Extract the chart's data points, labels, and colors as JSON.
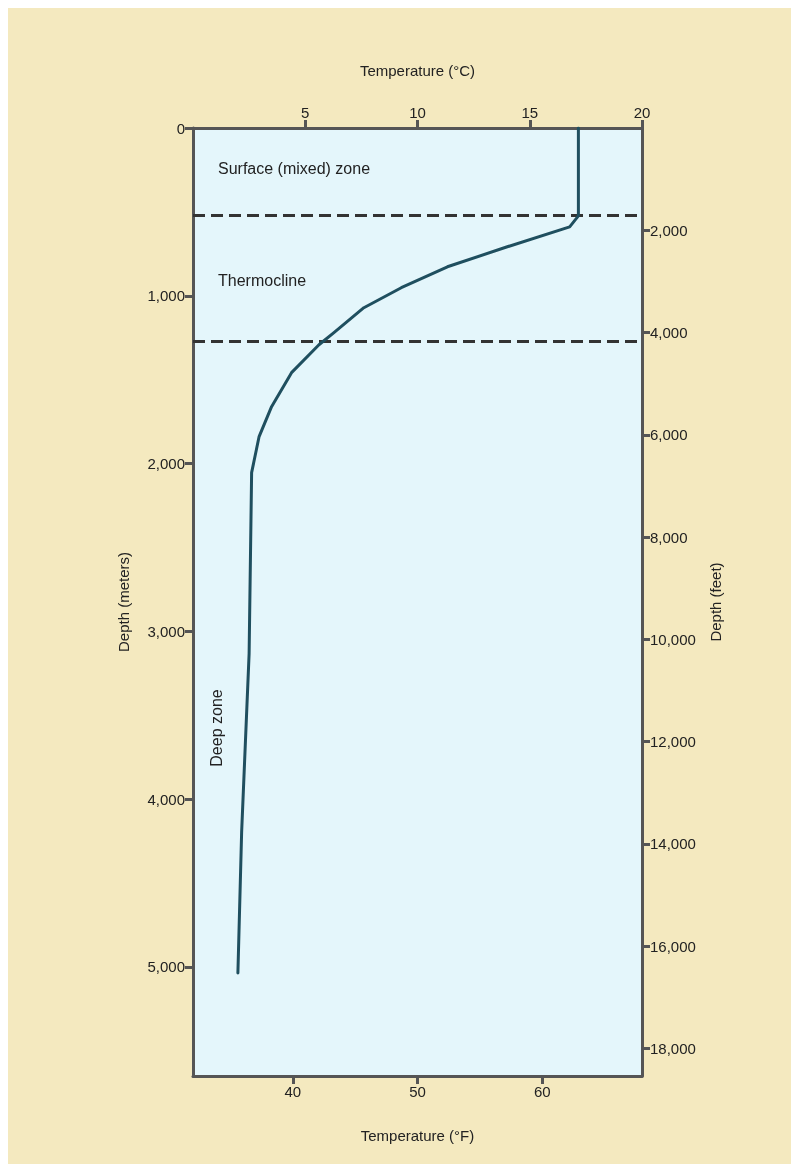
{
  "chart_data": {
    "type": "line",
    "xlabel": "Temperature (°F)",
    "x2label": "Temperature (°C)",
    "ylabel": "Depth (meters)",
    "y2label": "Depth (feet)",
    "xlim": [
      32,
      68
    ],
    "xticks": [
      40,
      50,
      60
    ],
    "x2lim": [
      0,
      20
    ],
    "x2ticks": [
      5,
      10,
      15,
      20
    ],
    "ylim": [
      5650,
      0
    ],
    "yticks": [
      0,
      {
        "value": 1000,
        "label": "1,000"
      },
      {
        "value": 2000,
        "label": "2,000"
      },
      {
        "value": 3000,
        "label": "3,000"
      },
      {
        "value": 4000,
        "label": "4,000"
      },
      {
        "value": 5000,
        "label": "5,000"
      }
    ],
    "y2lim": [
      18540,
      0
    ],
    "y2ticks": [
      {
        "value": 2000,
        "label": "2,000"
      },
      {
        "value": 4000,
        "label": "4,000"
      },
      {
        "value": 6000,
        "label": "6,000"
      },
      {
        "value": 8000,
        "label": "8,000"
      },
      {
        "value": 10000,
        "label": "10,000"
      },
      {
        "value": 12000,
        "label": "12,000"
      },
      {
        "value": 14000,
        "label": "14,000"
      },
      {
        "value": 16000,
        "label": "16,000"
      },
      {
        "value": 18000,
        "label": "18,000"
      }
    ],
    "series": [
      {
        "color": "#1f4f5f",
        "x": [
          62.9,
          62.9,
          62.2,
          57.2,
          52.4,
          48.7,
          45.7,
          43.3,
          42.1,
          39.9,
          38.3,
          37.3,
          36.7,
          36.5,
          35.9,
          35.6
        ],
        "values": [
          0,
          524,
          589,
          708,
          827,
          952,
          1071,
          1220,
          1292,
          1458,
          1661,
          1839,
          2054,
          3131,
          4196,
          5036
        ]
      }
    ],
    "ref_lines": [
      {
        "axis": "y",
        "value": 520,
        "color": "#333333",
        "line_style": "dashed"
      },
      {
        "axis": "y",
        "value": 1270,
        "color": "#333333",
        "line_style": "dashed"
      }
    ],
    "annotations": [
      "Surface (mixed) zone",
      "Thermocline",
      "Deep zone"
    ],
    "marker": "none",
    "line_style": "solid",
    "grid": false
  }
}
